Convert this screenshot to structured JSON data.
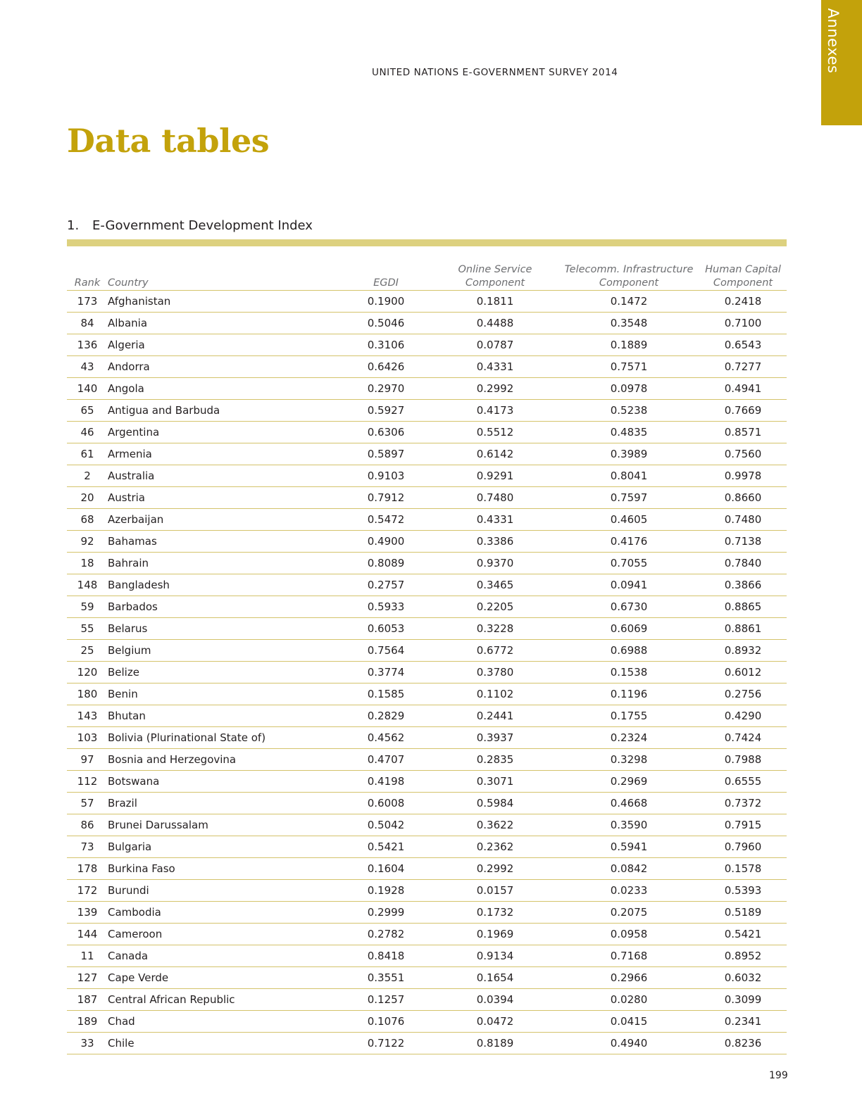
{
  "side_tab": {
    "label": "Annexes",
    "color": "#c3a20b"
  },
  "running_head": "UNITED NATIONS E-GOVERNMENT SURVEY 2014",
  "page_title": "Data tables",
  "section": {
    "number": "1.",
    "title": "E-Government Development Index"
  },
  "table": {
    "headers": {
      "rank": "Rank",
      "country": "Country",
      "egdi": "EGDI",
      "osi": [
        "Online Service",
        "Component"
      ],
      "tii": [
        "Telecomm. Infrastructure",
        "Component"
      ],
      "hci": [
        "Human Capital",
        "Component"
      ]
    },
    "rows": [
      [
        "173",
        "Afghanistan",
        "0.1900",
        "0.1811",
        "0.1472",
        "0.2418"
      ],
      [
        "84",
        "Albania",
        "0.5046",
        "0.4488",
        "0.3548",
        "0.7100"
      ],
      [
        "136",
        "Algeria",
        "0.3106",
        "0.0787",
        "0.1889",
        "0.6543"
      ],
      [
        "43",
        "Andorra",
        "0.6426",
        "0.4331",
        "0.7571",
        "0.7277"
      ],
      [
        "140",
        "Angola",
        "0.2970",
        "0.2992",
        "0.0978",
        "0.4941"
      ],
      [
        "65",
        "Antigua and Barbuda",
        "0.5927",
        "0.4173",
        "0.5238",
        "0.7669"
      ],
      [
        "46",
        "Argentina",
        "0.6306",
        "0.5512",
        "0.4835",
        "0.8571"
      ],
      [
        "61",
        "Armenia",
        "0.5897",
        "0.6142",
        "0.3989",
        "0.7560"
      ],
      [
        "2",
        "Australia",
        "0.9103",
        "0.9291",
        "0.8041",
        "0.9978"
      ],
      [
        "20",
        "Austria",
        "0.7912",
        "0.7480",
        "0.7597",
        "0.8660"
      ],
      [
        "68",
        "Azerbaijan",
        "0.5472",
        "0.4331",
        "0.4605",
        "0.7480"
      ],
      [
        "92",
        "Bahamas",
        "0.4900",
        "0.3386",
        "0.4176",
        "0.7138"
      ],
      [
        "18",
        "Bahrain",
        "0.8089",
        "0.9370",
        "0.7055",
        "0.7840"
      ],
      [
        "148",
        "Bangladesh",
        "0.2757",
        "0.3465",
        "0.0941",
        "0.3866"
      ],
      [
        "59",
        "Barbados",
        "0.5933",
        "0.2205",
        "0.6730",
        "0.8865"
      ],
      [
        "55",
        "Belarus",
        "0.6053",
        "0.3228",
        "0.6069",
        "0.8861"
      ],
      [
        "25",
        "Belgium",
        "0.7564",
        "0.6772",
        "0.6988",
        "0.8932"
      ],
      [
        "120",
        "Belize",
        "0.3774",
        "0.3780",
        "0.1538",
        "0.6012"
      ],
      [
        "180",
        "Benin",
        "0.1585",
        "0.1102",
        "0.1196",
        "0.2756"
      ],
      [
        "143",
        "Bhutan",
        "0.2829",
        "0.2441",
        "0.1755",
        "0.4290"
      ],
      [
        "103",
        "Bolivia (Plurinational State of)",
        "0.4562",
        "0.3937",
        "0.2324",
        "0.7424"
      ],
      [
        "97",
        "Bosnia and Herzegovina",
        "0.4707",
        "0.2835",
        "0.3298",
        "0.7988"
      ],
      [
        "112",
        "Botswana",
        "0.4198",
        "0.3071",
        "0.2969",
        "0.6555"
      ],
      [
        "57",
        "Brazil",
        "0.6008",
        "0.5984",
        "0.4668",
        "0.7372"
      ],
      [
        "86",
        "Brunei Darussalam",
        "0.5042",
        "0.3622",
        "0.3590",
        "0.7915"
      ],
      [
        "73",
        "Bulgaria",
        "0.5421",
        "0.2362",
        "0.5941",
        "0.7960"
      ],
      [
        "178",
        "Burkina Faso",
        "0.1604",
        "0.2992",
        "0.0842",
        "0.1578"
      ],
      [
        "172",
        "Burundi",
        "0.1928",
        "0.0157",
        "0.0233",
        "0.5393"
      ],
      [
        "139",
        "Cambodia",
        "0.2999",
        "0.1732",
        "0.2075",
        "0.5189"
      ],
      [
        "144",
        "Cameroon",
        "0.2782",
        "0.1969",
        "0.0958",
        "0.5421"
      ],
      [
        "11",
        "Canada",
        "0.8418",
        "0.9134",
        "0.7168",
        "0.8952"
      ],
      [
        "127",
        "Cape Verde",
        "0.3551",
        "0.1654",
        "0.2966",
        "0.6032"
      ],
      [
        "187",
        "Central African Republic",
        "0.1257",
        "0.0394",
        "0.0280",
        "0.3099"
      ],
      [
        "189",
        "Chad",
        "0.1076",
        "0.0472",
        "0.0415",
        "0.2341"
      ],
      [
        "33",
        "Chile",
        "0.7122",
        "0.8189",
        "0.4940",
        "0.8236"
      ]
    ]
  },
  "page_number": "199"
}
